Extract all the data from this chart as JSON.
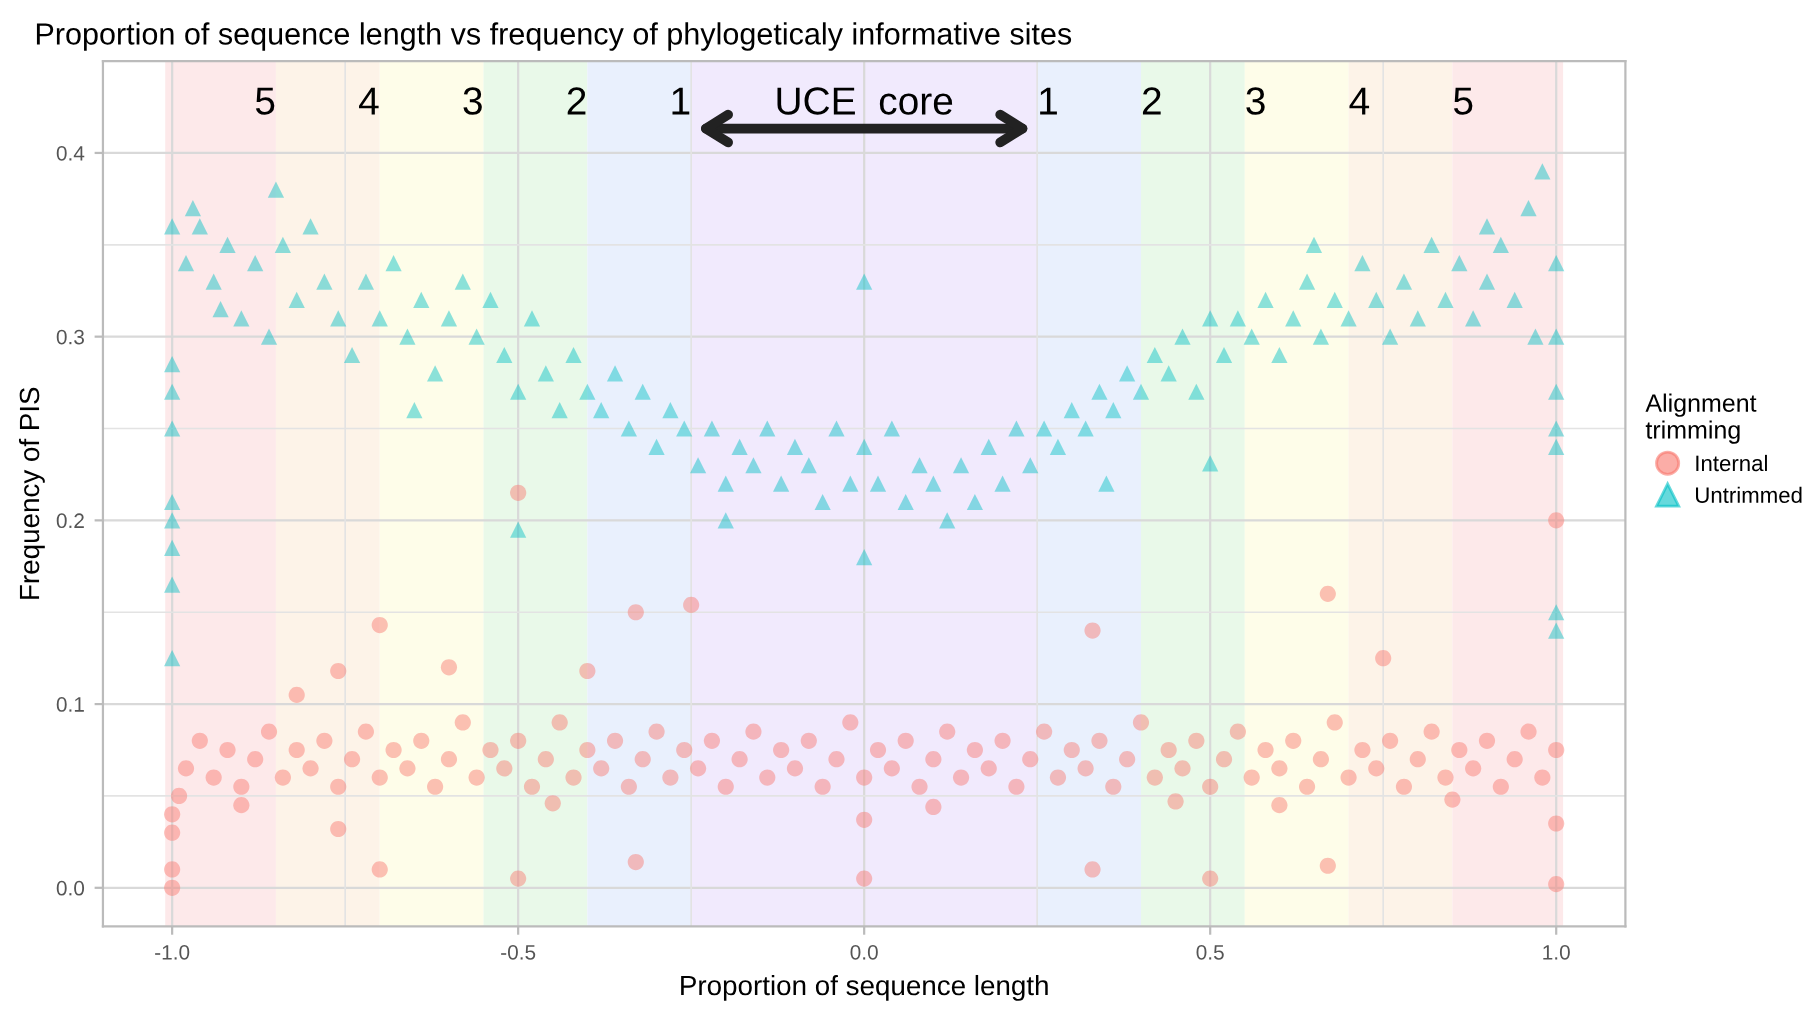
{
  "chart_data": {
    "type": "scatter",
    "title": "Proportion of sequence length vs frequency of phylogeticaly informative sites",
    "xlabel": "Proportion of sequence length",
    "ylabel": "Frequency of PIS",
    "legend_title": "Alignment\ntrimming",
    "legend": "right",
    "grid": true,
    "xlim": [
      -1.1,
      1.1
    ],
    "ylim": [
      -0.021,
      0.45
    ],
    "xticks": [
      {
        "value": -1.0,
        "label": "-1.0"
      },
      -0.5,
      {
        "value": 0.0,
        "label": "0.0"
      },
      0.5,
      {
        "value": 1.0,
        "label": "1.0"
      }
    ],
    "yticks": [
      {
        "value": 0.0,
        "label": "0.0"
      },
      0.1,
      0.2,
      0.3,
      0.4
    ],
    "bands": [
      {
        "axis": "x",
        "from": -1.01,
        "to": -0.85,
        "color": "#fde9ea",
        "label": "5"
      },
      {
        "axis": "x",
        "from": -0.85,
        "to": -0.7,
        "color": "#fdf3e8",
        "label": "4"
      },
      {
        "axis": "x",
        "from": -0.7,
        "to": -0.55,
        "color": "#fefde9",
        "label": "3"
      },
      {
        "axis": "x",
        "from": -0.55,
        "to": -0.4,
        "color": "#e9f9e9",
        "label": "2"
      },
      {
        "axis": "x",
        "from": -0.4,
        "to": -0.25,
        "color": "#e9f0fd",
        "label": "1"
      },
      {
        "axis": "x",
        "from": -0.25,
        "to": 0.25,
        "color": "#f1eafd",
        "label": "UCE  core"
      },
      {
        "axis": "x",
        "from": 0.25,
        "to": 0.4,
        "color": "#e9f0fd",
        "label": "1"
      },
      {
        "axis": "x",
        "from": 0.4,
        "to": 0.55,
        "color": "#e9f9e9",
        "label": "2"
      },
      {
        "axis": "x",
        "from": 0.55,
        "to": 0.7,
        "color": "#fefde9",
        "label": "3"
      },
      {
        "axis": "x",
        "from": 0.7,
        "to": 0.85,
        "color": "#fdf3e8",
        "label": "4"
      },
      {
        "axis": "x",
        "from": 0.85,
        "to": 1.01,
        "color": "#fde9ea",
        "label": "5"
      }
    ],
    "series": [
      {
        "name": "Internal",
        "color": "#f8766d",
        "marker": "circle",
        "x": [
          -1.0,
          -1.0,
          -1.0,
          -1.0,
          -0.99,
          -0.98,
          -0.96,
          -0.94,
          -0.92,
          -0.9,
          -0.88,
          -0.86,
          -0.84,
          -0.82,
          -0.8,
          -0.78,
          -0.76,
          -0.74,
          -0.72,
          -0.7,
          -0.68,
          -0.66,
          -0.64,
          -0.62,
          -0.6,
          -0.58,
          -0.56,
          -0.54,
          -0.52,
          -0.5,
          -0.48,
          -0.46,
          -0.44,
          -0.42,
          -0.4,
          -0.38,
          -0.36,
          -0.34,
          -0.32,
          -0.3,
          -0.28,
          -0.26,
          -0.24,
          -0.22,
          -0.2,
          -0.18,
          -0.16,
          -0.14,
          -0.12,
          -0.1,
          -0.08,
          -0.06,
          -0.04,
          -0.02,
          0.0,
          0.02,
          0.04,
          0.06,
          0.08,
          0.1,
          0.12,
          0.14,
          0.16,
          0.18,
          0.2,
          0.22,
          0.24,
          0.26,
          0.28,
          0.3,
          0.32,
          0.34,
          0.36,
          0.38,
          0.4,
          0.42,
          0.44,
          0.46,
          0.48,
          0.5,
          0.52,
          0.54,
          0.56,
          0.58,
          0.6,
          0.62,
          0.64,
          0.66,
          0.68,
          0.7,
          0.72,
          0.74,
          0.76,
          0.78,
          0.8,
          0.82,
          0.84,
          0.86,
          0.88,
          0.9,
          0.92,
          0.94,
          0.96,
          0.98,
          1.0,
          -0.82,
          -0.76,
          -0.76,
          -0.7,
          -0.7,
          -0.6,
          -0.5,
          -0.5,
          -0.4,
          -0.33,
          -0.33,
          -0.25,
          0.0,
          0.0,
          0.33,
          0.33,
          0.5,
          0.67,
          0.67,
          0.75,
          1.0,
          1.0,
          1.0,
          0.6,
          -0.9,
          -0.45,
          0.1,
          0.45,
          0.85
        ],
        "values": [
          0.0,
          0.01,
          0.03,
          0.04,
          0.05,
          0.065,
          0.08,
          0.06,
          0.075,
          0.055,
          0.07,
          0.085,
          0.06,
          0.075,
          0.065,
          0.08,
          0.055,
          0.07,
          0.085,
          0.06,
          0.075,
          0.065,
          0.08,
          0.055,
          0.07,
          0.09,
          0.06,
          0.075,
          0.065,
          0.08,
          0.055,
          0.07,
          0.09,
          0.06,
          0.075,
          0.065,
          0.08,
          0.055,
          0.07,
          0.085,
          0.06,
          0.075,
          0.065,
          0.08,
          0.055,
          0.07,
          0.085,
          0.06,
          0.075,
          0.065,
          0.08,
          0.055,
          0.07,
          0.09,
          0.06,
          0.075,
          0.065,
          0.08,
          0.055,
          0.07,
          0.085,
          0.06,
          0.075,
          0.065,
          0.08,
          0.055,
          0.07,
          0.085,
          0.06,
          0.075,
          0.065,
          0.08,
          0.055,
          0.07,
          0.09,
          0.06,
          0.075,
          0.065,
          0.08,
          0.055,
          0.07,
          0.085,
          0.06,
          0.075,
          0.065,
          0.08,
          0.055,
          0.07,
          0.09,
          0.06,
          0.075,
          0.065,
          0.08,
          0.055,
          0.07,
          0.085,
          0.06,
          0.075,
          0.065,
          0.08,
          0.055,
          0.07,
          0.085,
          0.06,
          0.075,
          0.105,
          0.118,
          0.032,
          0.143,
          0.01,
          0.12,
          0.215,
          0.005,
          0.118,
          0.15,
          0.014,
          0.154,
          0.005,
          0.037,
          0.14,
          0.01,
          0.005,
          0.16,
          0.012,
          0.125,
          0.2,
          0.035,
          0.002,
          0.045,
          0.045,
          0.046,
          0.044,
          0.047,
          0.048
        ]
      },
      {
        "name": "Untrimmed",
        "color": "#00bfc4",
        "marker": "triangle",
        "x": [
          -1.0,
          -1.0,
          -1.0,
          -1.0,
          -1.0,
          -1.0,
          -1.0,
          -1.0,
          -1.0,
          -0.98,
          -0.96,
          -0.94,
          -0.92,
          -0.9,
          -0.88,
          -0.86,
          -0.84,
          -0.82,
          -0.8,
          -0.78,
          -0.76,
          -0.74,
          -0.72,
          -0.7,
          -0.68,
          -0.66,
          -0.64,
          -0.62,
          -0.6,
          -0.58,
          -0.56,
          -0.54,
          -0.52,
          -0.5,
          -0.48,
          -0.46,
          -0.44,
          -0.42,
          -0.4,
          -0.38,
          -0.36,
          -0.34,
          -0.32,
          -0.3,
          -0.28,
          -0.26,
          -0.24,
          -0.22,
          -0.2,
          -0.18,
          -0.16,
          -0.14,
          -0.12,
          -0.1,
          -0.08,
          -0.06,
          -0.04,
          -0.02,
          0.0,
          0.02,
          0.04,
          0.06,
          0.08,
          0.1,
          0.12,
          0.14,
          0.16,
          0.18,
          0.2,
          0.22,
          0.24,
          0.26,
          0.28,
          0.3,
          0.32,
          0.34,
          0.36,
          0.38,
          0.4,
          0.42,
          0.44,
          0.46,
          0.48,
          0.5,
          0.52,
          0.54,
          0.56,
          0.58,
          0.6,
          0.62,
          0.64,
          0.66,
          0.68,
          0.7,
          0.72,
          0.74,
          0.76,
          0.78,
          0.8,
          0.82,
          0.84,
          0.86,
          0.88,
          0.9,
          0.92,
          0.94,
          0.96,
          0.98,
          1.0,
          1.0,
          1.0,
          1.0,
          1.0,
          1.0,
          1.0,
          -0.5,
          0.0,
          0.0,
          0.5,
          -0.2,
          -0.97,
          -0.93,
          -0.85,
          -0.65,
          0.35,
          0.65,
          0.9,
          0.97
        ],
        "values": [
          0.36,
          0.285,
          0.27,
          0.25,
          0.21,
          0.2,
          0.185,
          0.165,
          0.125,
          0.34,
          0.36,
          0.33,
          0.35,
          0.31,
          0.34,
          0.3,
          0.35,
          0.32,
          0.36,
          0.33,
          0.31,
          0.29,
          0.33,
          0.31,
          0.34,
          0.3,
          0.32,
          0.28,
          0.31,
          0.33,
          0.3,
          0.32,
          0.29,
          0.27,
          0.31,
          0.28,
          0.26,
          0.29,
          0.27,
          0.26,
          0.28,
          0.25,
          0.27,
          0.24,
          0.26,
          0.25,
          0.23,
          0.25,
          0.22,
          0.24,
          0.23,
          0.25,
          0.22,
          0.24,
          0.23,
          0.21,
          0.25,
          0.22,
          0.24,
          0.22,
          0.25,
          0.21,
          0.23,
          0.22,
          0.2,
          0.23,
          0.21,
          0.24,
          0.22,
          0.25,
          0.23,
          0.25,
          0.24,
          0.26,
          0.25,
          0.27,
          0.26,
          0.28,
          0.27,
          0.29,
          0.28,
          0.3,
          0.27,
          0.31,
          0.29,
          0.31,
          0.3,
          0.32,
          0.29,
          0.31,
          0.33,
          0.3,
          0.32,
          0.31,
          0.34,
          0.32,
          0.3,
          0.33,
          0.31,
          0.35,
          0.32,
          0.34,
          0.31,
          0.33,
          0.35,
          0.32,
          0.37,
          0.39,
          0.34,
          0.3,
          0.27,
          0.25,
          0.24,
          0.15,
          0.14,
          0.195,
          0.33,
          0.18,
          0.231,
          0.2,
          0.37,
          0.315,
          0.38,
          0.26,
          0.22,
          0.35,
          0.36,
          0.3
        ]
      }
    ]
  }
}
